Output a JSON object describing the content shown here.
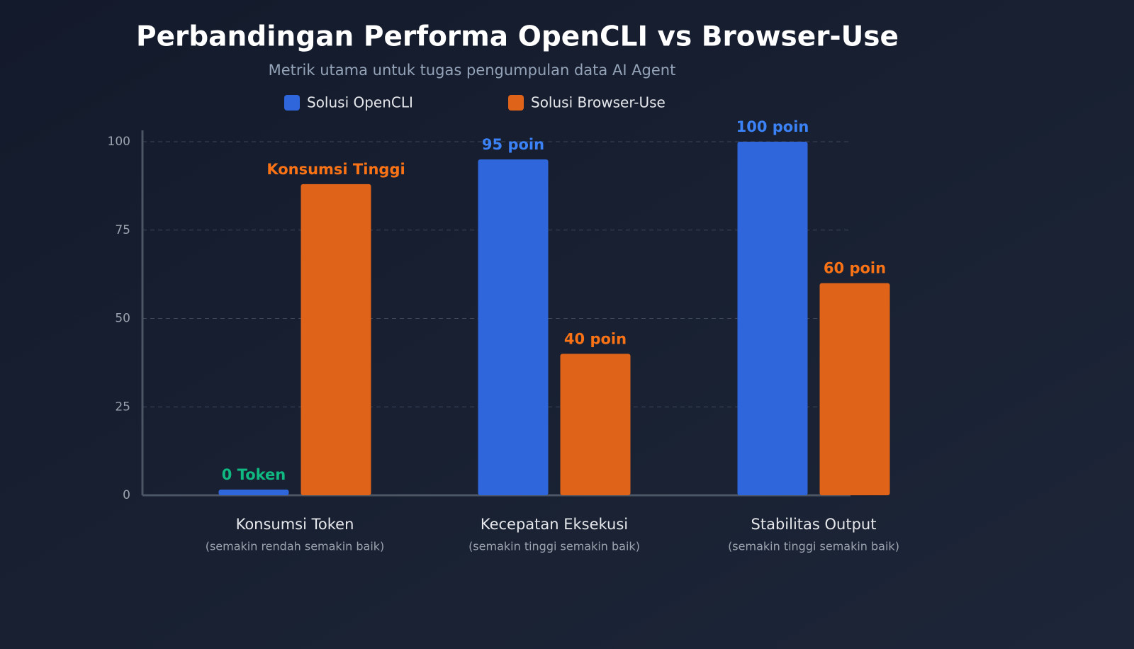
{
  "chart_data": {
    "type": "bar",
    "title": "Perbandingan Performa OpenCLI vs Browser-Use",
    "subtitle": "Metrik utama untuk tugas pengumpulan data AI Agent",
    "categories": [
      "Konsumsi Token",
      "Kecepatan Eksekusi",
      "Stabilitas Output"
    ],
    "category_notes": [
      "(semakin rendah semakin baik)",
      "(semakin tinggi semakin baik)",
      "(semakin tinggi semakin baik)"
    ],
    "series": [
      {
        "name": "Solusi OpenCLI",
        "color": "#2f66dc",
        "values": [
          0,
          95,
          100
        ],
        "value_labels": [
          "0 Token",
          "95 poin",
          "100 poin"
        ],
        "value_label_colors": [
          "#10b981",
          "#3b82f6",
          "#3b82f6"
        ]
      },
      {
        "name": "Solusi Browser-Use",
        "color": "#e0631a",
        "values": [
          88,
          40,
          60
        ],
        "value_labels": [
          "Konsumsi Tinggi",
          "40 poin",
          "60 poin"
        ],
        "value_label_colors": [
          "#f97316",
          "#f97316",
          "#f97316"
        ]
      }
    ],
    "ylim": [
      0,
      100
    ],
    "yticks": [
      0,
      25,
      50,
      75,
      100
    ],
    "grid": true
  }
}
